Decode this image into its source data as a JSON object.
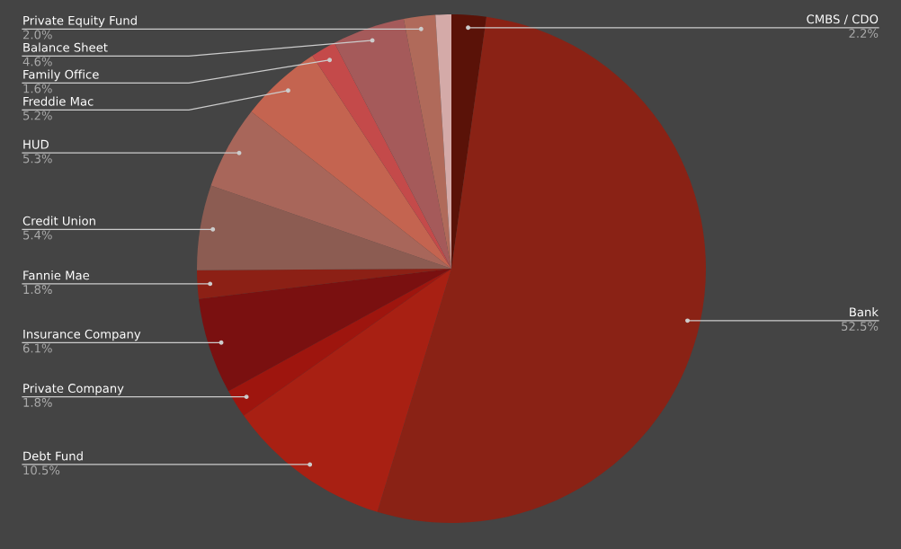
{
  "chart_data": {
    "type": "pie",
    "categories": [
      "CMBS / CDO",
      "Bank",
      "Debt Fund",
      "Private Company",
      "Insurance Company",
      "Fannie Mae",
      "Credit Union",
      "HUD",
      "Freddie Mac",
      "Family Office",
      "Balance Sheet",
      "Private Equity Fund",
      null
    ],
    "values": [
      2.2,
      52.5,
      10.5,
      1.8,
      6.1,
      1.8,
      5.4,
      5.3,
      5.2,
      1.6,
      4.6,
      2.0,
      1.0
    ],
    "value_labels": [
      "2.2%",
      "52.5%",
      "10.5%",
      "1.8%",
      "6.1%",
      "1.8%",
      "5.4%",
      "5.3%",
      "5.2%",
      "1.6%",
      "4.6%",
      "2.0%",
      null
    ],
    "colors": [
      "#5a1208",
      "#8a2215",
      "#a82013",
      "#9e150e",
      "#7a1010",
      "#8c2015",
      "#8c5c52",
      "#a8665a",
      "#c46450",
      "#c44a4a",
      "#a55a5a",
      "#b06a5a",
      "#d4aaa8"
    ]
  }
}
